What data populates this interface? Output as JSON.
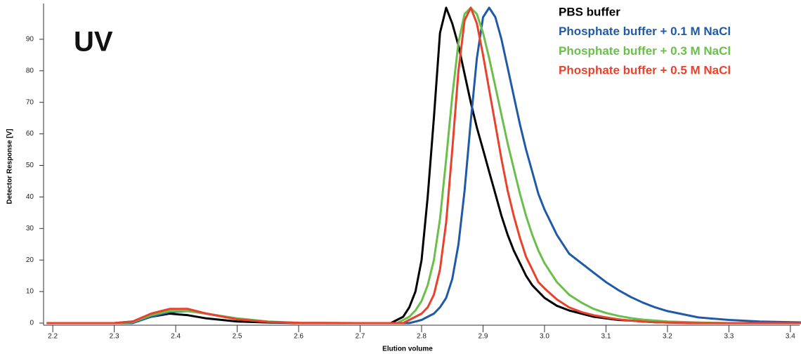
{
  "chart_data": {
    "type": "line",
    "annotation": "UV",
    "xlabel": "Elution volume",
    "ylabel": "Detector Response [V]",
    "x": [
      2.19,
      2.25,
      2.3,
      2.33,
      2.36,
      2.39,
      2.42,
      2.45,
      2.5,
      2.55,
      2.6,
      2.7,
      2.75,
      2.76,
      2.77,
      2.78,
      2.79,
      2.8,
      2.81,
      2.82,
      2.83,
      2.84,
      2.85,
      2.86,
      2.87,
      2.88,
      2.89,
      2.9,
      2.91,
      2.92,
      2.93,
      2.94,
      2.95,
      2.96,
      2.97,
      2.98,
      2.99,
      3.0,
      3.02,
      3.04,
      3.06,
      3.08,
      3.1,
      3.12,
      3.14,
      3.16,
      3.18,
      3.2,
      3.25,
      3.3,
      3.35,
      3.42
    ],
    "series": [
      {
        "name": "PBS buffer",
        "color": "#000000",
        "values": [
          0,
          0,
          0,
          0.5,
          2,
          3,
          2.5,
          1.5,
          0.5,
          0.2,
          0,
          0,
          0,
          1,
          2,
          5,
          10,
          20,
          40,
          65,
          92,
          100,
          95,
          88,
          79,
          70,
          62,
          55,
          48,
          41,
          34,
          28,
          23,
          19,
          15,
          12,
          10,
          8,
          5.5,
          4,
          3,
          2,
          1.5,
          1,
          0.8,
          0.5,
          0.3,
          0.2,
          0,
          0,
          0,
          0
        ]
      },
      {
        "name": "Phosphate buffer + 0.1 M NaCl",
        "color": "#1f5aa8",
        "values": [
          0,
          0,
          0,
          0,
          2,
          3.5,
          3.8,
          3,
          1.3,
          0.4,
          0,
          0,
          0,
          0,
          0,
          0,
          0.5,
          1,
          2,
          3,
          5,
          8,
          14,
          25,
          42,
          64,
          84,
          97,
          100,
          97,
          90,
          81,
          72,
          63,
          55,
          48,
          41,
          36,
          28,
          22,
          19,
          16,
          13,
          10.5,
          8.3,
          6.5,
          5,
          3.8,
          1.8,
          1,
          0.5,
          0.2
        ]
      },
      {
        "name": "Phosphate buffer + 0.3 M NaCl",
        "color": "#6abf4b",
        "values": [
          0,
          0,
          0,
          0.3,
          2.5,
          3.8,
          3.8,
          3,
          1.5,
          0.5,
          0.1,
          0,
          0,
          0,
          1,
          2,
          4,
          7,
          12,
          20,
          33,
          52,
          72,
          89,
          98,
          100,
          98,
          92,
          84,
          75,
          66,
          57,
          49,
          41,
          34,
          28,
          23,
          19,
          13,
          9,
          6.5,
          4.5,
          3.2,
          2.3,
          1.6,
          1.1,
          0.8,
          0.5,
          0.2,
          0,
          0,
          0
        ]
      },
      {
        "name": "Phosphate buffer + 0.5 M NaCl",
        "color": "#e8412c",
        "values": [
          0,
          0,
          0,
          0.5,
          3,
          4.5,
          4.5,
          3,
          1.2,
          0.4,
          0.1,
          0,
          0,
          0,
          0,
          1,
          2,
          3,
          5,
          9,
          17,
          32,
          55,
          80,
          96,
          100,
          95,
          85,
          74,
          63,
          52,
          42,
          34,
          27,
          21,
          17,
          13,
          11,
          7.5,
          5,
          3.5,
          2.5,
          1.8,
          1.2,
          0.8,
          0.5,
          0.3,
          0.2,
          0,
          0,
          0,
          0
        ]
      }
    ],
    "xlim": [
      2.185,
      3.415
    ],
    "xticks": [
      2.2,
      2.3,
      2.4,
      2.5,
      2.6,
      2.7,
      2.8,
      2.9,
      {
        "value": 3.0,
        "label": "3.0"
      },
      3.1,
      3.2,
      3.3,
      3.4
    ],
    "ylim": [
      0,
      100
    ],
    "yticks": [
      0,
      10,
      20,
      30,
      40,
      50,
      60,
      70,
      80,
      90
    ],
    "legend": "upper right",
    "grid": false
  }
}
